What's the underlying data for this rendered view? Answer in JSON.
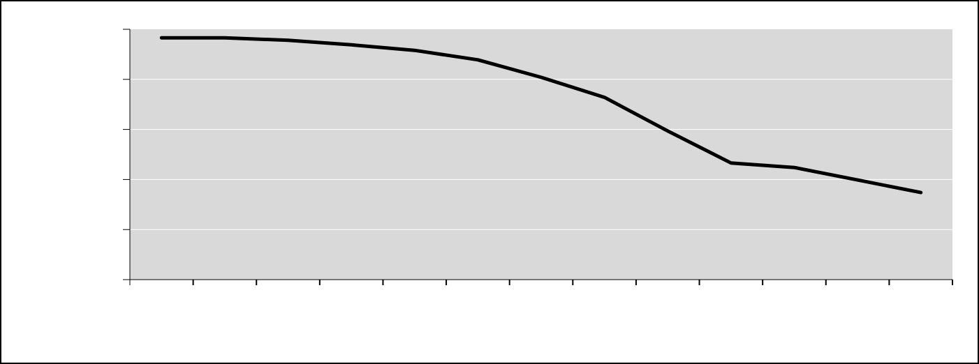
{
  "chart_data": {
    "type": "line",
    "title": "",
    "xlabel": "",
    "ylabel": "",
    "categories": [
      "",
      "",
      "",
      "",
      "",
      "",
      "",
      "",
      "",
      "",
      "",
      "",
      ""
    ],
    "ylim": [
      0,
      5
    ],
    "y_gridlines": [
      1,
      2,
      3,
      4,
      5
    ],
    "grid": true,
    "legend": "none",
    "plot_background": "#d9d9d9",
    "series": [
      {
        "color": "#000000",
        "values": [
          4.83,
          4.83,
          4.78,
          4.69,
          4.58,
          4.39,
          4.04,
          3.64,
          2.97,
          2.33,
          2.24,
          1.99,
          1.74
        ]
      }
    ]
  }
}
